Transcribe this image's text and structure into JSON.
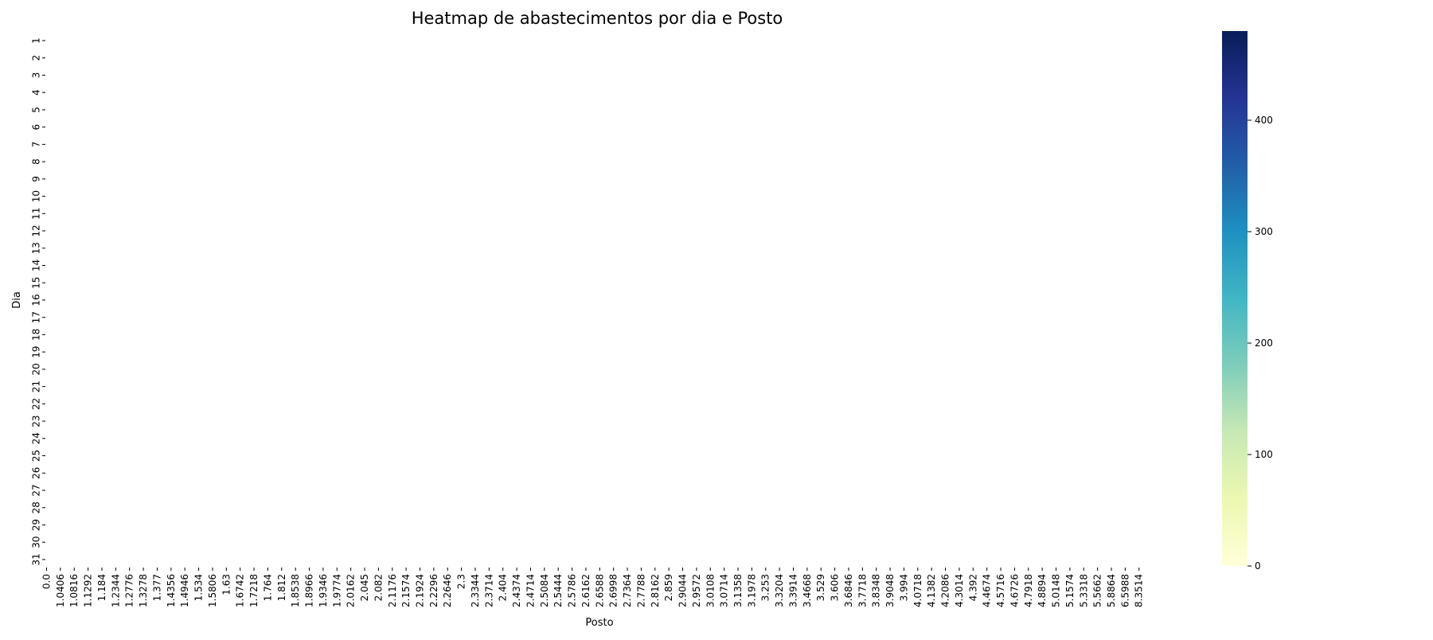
{
  "chart_data": {
    "type": "heatmap",
    "title": "Heatmap de abastecimentos por dia e Posto",
    "xlabel": "Posto",
    "ylabel": "Dia",
    "x_categories": [
      "0.0",
      "1.0406",
      "1.0816",
      "1.1292",
      "1.184",
      "1.2344",
      "1.2776",
      "1.3278",
      "1.377",
      "1.4356",
      "1.4946",
      "1.534",
      "1.5806",
      "1.63",
      "1.6742",
      "1.7218",
      "1.764",
      "1.812",
      "1.8538",
      "1.8966",
      "1.9346",
      "1.9774",
      "2.0162",
      "2.045",
      "2.082",
      "2.1176",
      "2.1574",
      "2.1924",
      "2.2296",
      "2.2646",
      "2.3",
      "2.3344",
      "2.3714",
      "2.404",
      "2.4374",
      "2.4714",
      "2.5084",
      "2.5444",
      "2.5786",
      "2.6162",
      "2.6588",
      "2.6998",
      "2.7364",
      "2.7788",
      "2.8162",
      "2.859",
      "2.9044",
      "2.9572",
      "3.0108",
      "3.0714",
      "3.1358",
      "3.1978",
      "3.253",
      "3.3204",
      "3.3914",
      "3.4668",
      "3.529",
      "3.606",
      "3.6846",
      "3.7718",
      "3.8348",
      "3.9048",
      "3.994",
      "4.0718",
      "4.1382",
      "4.2086",
      "4.3014",
      "4.392",
      "4.4674",
      "4.5716",
      "4.6726",
      "4.7918",
      "4.8894",
      "5.0148",
      "5.1574",
      "5.3318",
      "5.5662",
      "5.8864",
      "6.5988",
      "8.3514"
    ],
    "y_categories": [
      "1",
      "2",
      "3",
      "4",
      "5",
      "6",
      "7",
      "8",
      "9",
      "10",
      "11",
      "12",
      "13",
      "14",
      "15",
      "16",
      "17",
      "18",
      "19",
      "20",
      "21",
      "22",
      "23",
      "24",
      "25",
      "26",
      "27",
      "28",
      "29",
      "30",
      "31"
    ],
    "values_note": "",
    "colorbar": {
      "colormap": "YlGnBu",
      "range": [
        0,
        480
      ],
      "ticks": [
        0,
        100,
        200,
        300,
        400
      ]
    },
    "grid": false
  }
}
